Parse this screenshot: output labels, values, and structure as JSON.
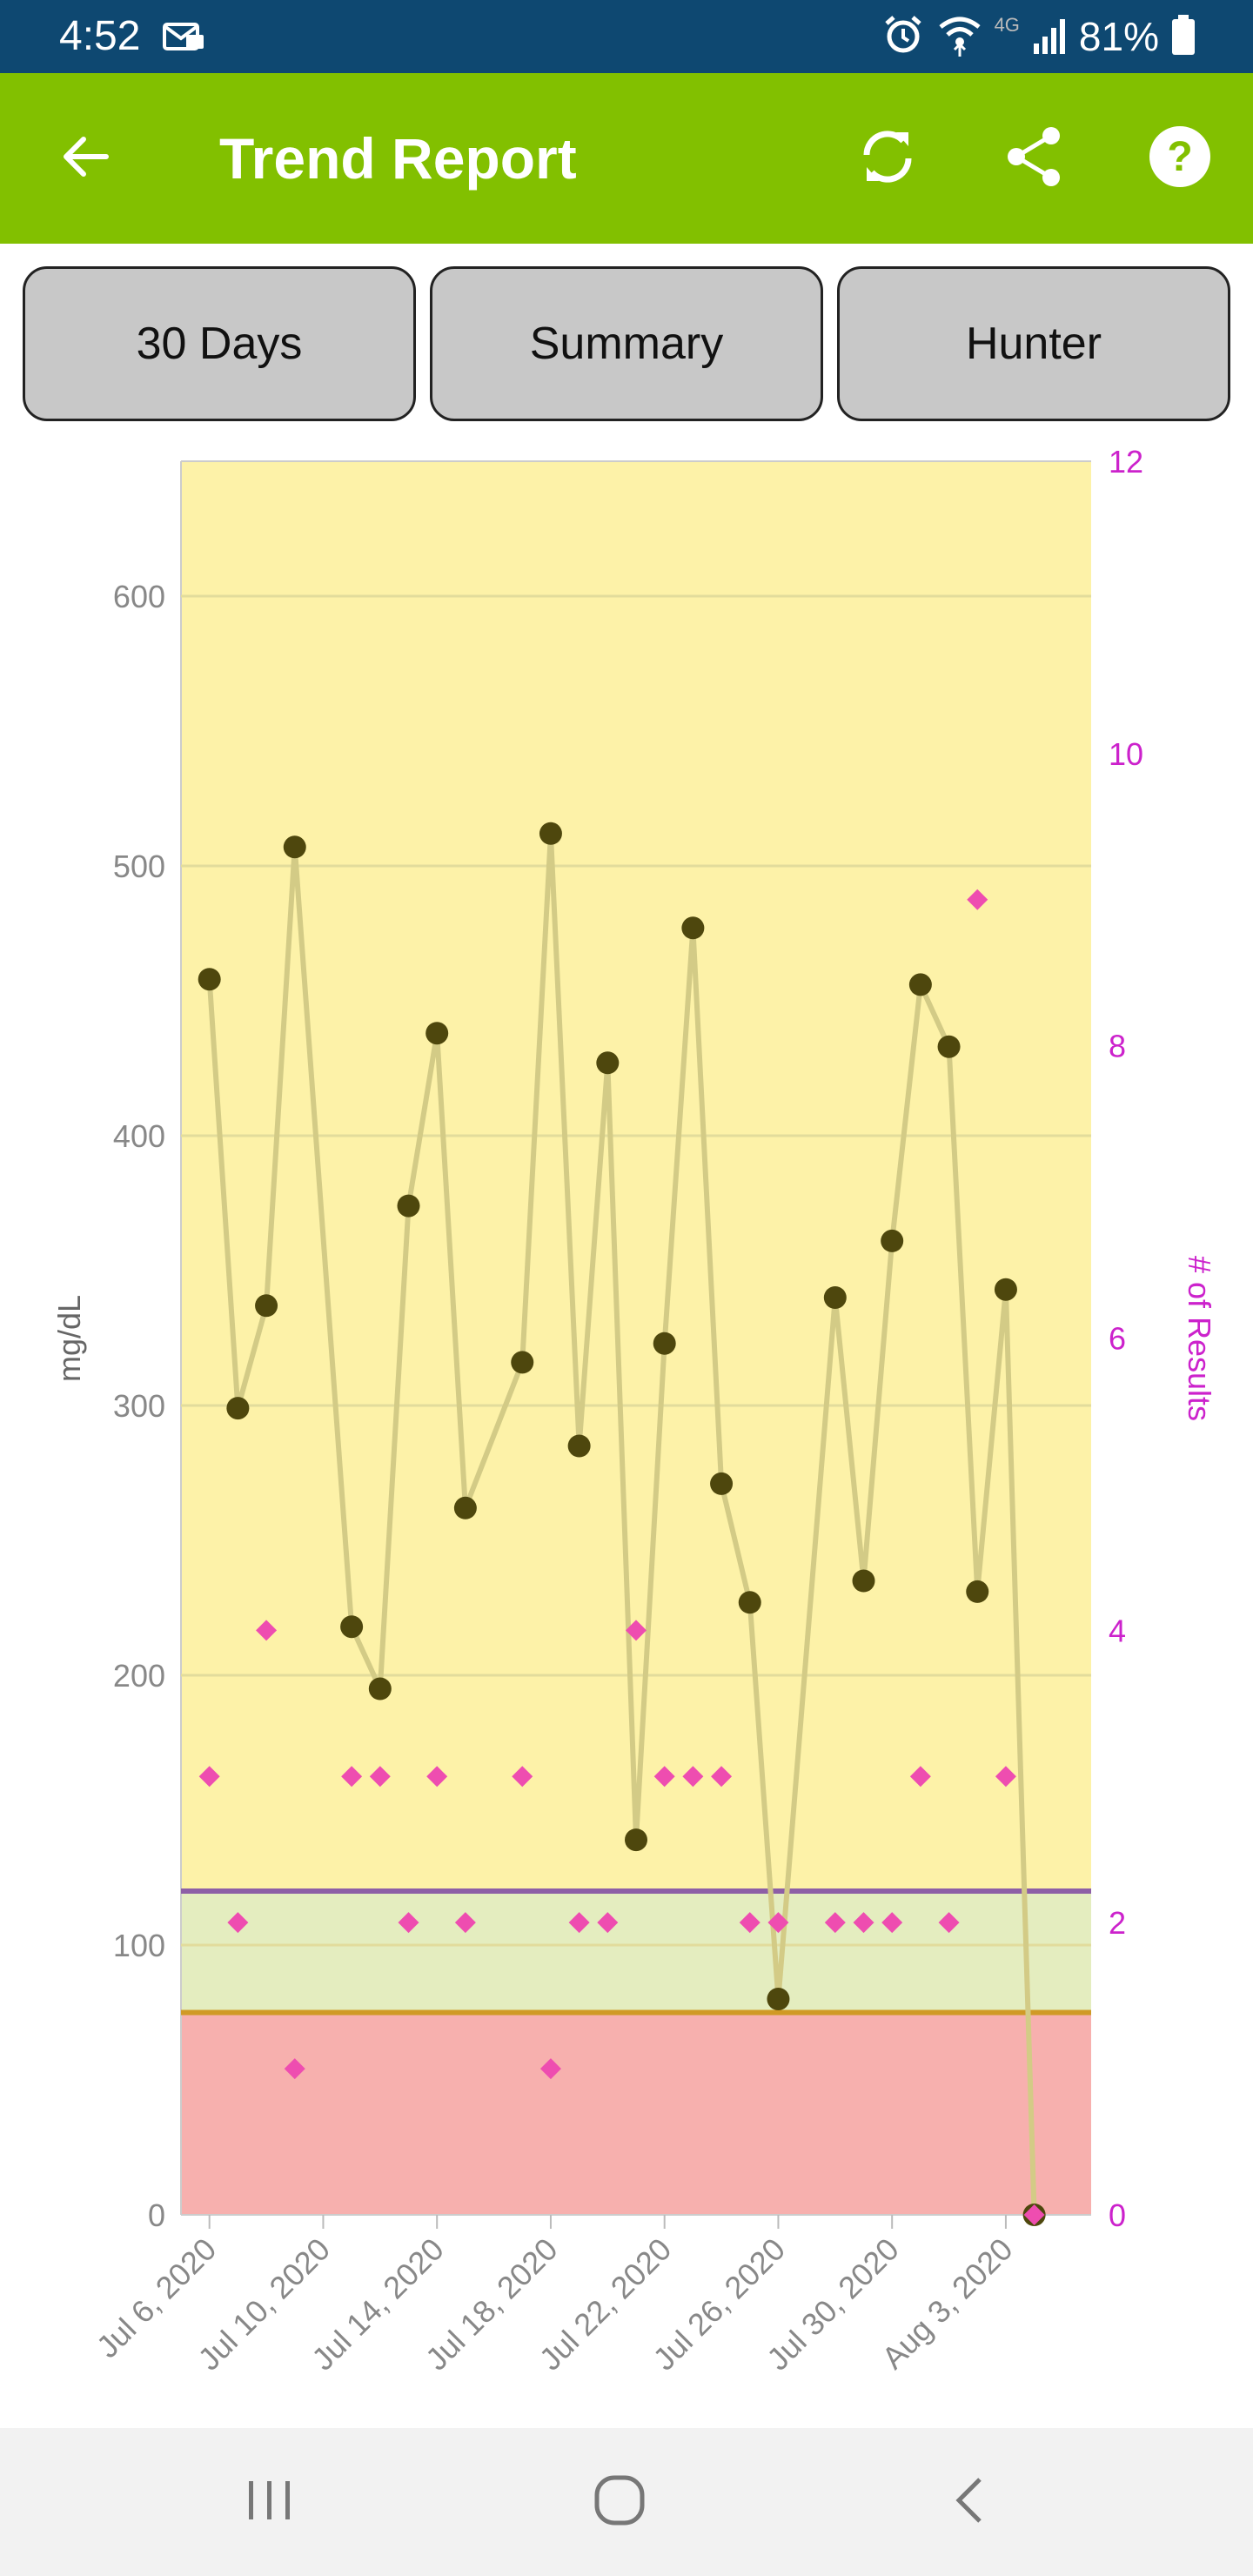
{
  "status_bar": {
    "time": "4:52",
    "network": "4G",
    "battery": "81%",
    "icons": [
      "message-icon",
      "alarm-icon",
      "wifi-icon",
      "signal-icon",
      "battery-icon"
    ]
  },
  "app_bar": {
    "title": "Trend Report",
    "back_icon": "back-arrow-icon",
    "actions": [
      "refresh-icon",
      "share-icon",
      "help-icon"
    ]
  },
  "selectors": {
    "range": "30 Days",
    "view": "Summary",
    "user": "Hunter"
  },
  "colors": {
    "status_bar": "#0e4871",
    "app_bar": "#82c000",
    "high_zone": "#fdf2a8",
    "target_zone": "#e4edbf",
    "low_zone": "#f7b0ae",
    "high_line": "#8d5fa6",
    "low_line": "#d09a26",
    "reading_line": "#d3cb86",
    "reading_point": "#4e470d",
    "count_marker": "#ee4db0",
    "right_axis": "#cc22cc",
    "left_axis": "#888888"
  },
  "chart_data": {
    "type": "line",
    "ylabel": "mg/dL",
    "y2label": "# of Results",
    "ylim": [
      0,
      650
    ],
    "y2lim": [
      0,
      12
    ],
    "yticks": [
      0,
      100,
      200,
      300,
      400,
      500,
      600
    ],
    "y2ticks": [
      0,
      2,
      4,
      6,
      8,
      10,
      12
    ],
    "xlim": [
      "2020-07-05",
      "2020-08-06"
    ],
    "xticks": [
      "2020-07-06",
      "2020-07-10",
      "2020-07-14",
      "2020-07-18",
      "2020-07-22",
      "2020-07-26",
      "2020-07-30",
      "2020-08-03"
    ],
    "xtick_labels": [
      "Jul 6, 2020",
      "Jul 10, 2020",
      "Jul 14, 2020",
      "Jul 18, 2020",
      "Jul 22, 2020",
      "Jul 26, 2020",
      "Jul 30, 2020",
      "Aug 3, 2020"
    ],
    "grid": true,
    "zones": [
      {
        "name": "high",
        "from": 120,
        "to": 650
      },
      {
        "name": "target",
        "from": 75,
        "to": 120
      },
      {
        "name": "low",
        "from": 0,
        "to": 75
      }
    ],
    "threshold_lines": {
      "high": 120,
      "low": 75
    },
    "series": [
      {
        "axis": "left",
        "style": "line-markers",
        "x": [
          "2020-07-06",
          "2020-07-07",
          "2020-07-08",
          "2020-07-09",
          "2020-07-11",
          "2020-07-12",
          "2020-07-13",
          "2020-07-14",
          "2020-07-15",
          "2020-07-17",
          "2020-07-18",
          "2020-07-19",
          "2020-07-20",
          "2020-07-21",
          "2020-07-22",
          "2020-07-23",
          "2020-07-24",
          "2020-07-25",
          "2020-07-26",
          "2020-07-28",
          "2020-07-29",
          "2020-07-30",
          "2020-07-31",
          "2020-08-01",
          "2020-08-02",
          "2020-08-03",
          "2020-08-04"
        ],
        "values": [
          458,
          299,
          337,
          507,
          218,
          195,
          374,
          438,
          262,
          316,
          512,
          285,
          427,
          139,
          323,
          477,
          271,
          227,
          80,
          340,
          235,
          361,
          456,
          433,
          231,
          343,
          0
        ]
      },
      {
        "axis": "right",
        "style": "diamond-markers",
        "x": [
          "2020-07-06",
          "2020-07-07",
          "2020-07-08",
          "2020-07-09",
          "2020-07-11",
          "2020-07-12",
          "2020-07-13",
          "2020-07-14",
          "2020-07-15",
          "2020-07-17",
          "2020-07-18",
          "2020-07-19",
          "2020-07-20",
          "2020-07-21",
          "2020-07-22",
          "2020-07-23",
          "2020-07-24",
          "2020-07-25",
          "2020-07-26",
          "2020-07-28",
          "2020-07-29",
          "2020-07-30",
          "2020-07-31",
          "2020-08-01",
          "2020-08-02",
          "2020-08-03",
          "2020-08-04"
        ],
        "values": [
          3,
          2,
          4,
          1,
          3,
          3,
          2,
          3,
          2,
          3,
          1,
          2,
          2,
          4,
          3,
          3,
          3,
          2,
          2,
          2,
          2,
          2,
          3,
          2,
          9,
          3,
          0
        ]
      }
    ]
  }
}
